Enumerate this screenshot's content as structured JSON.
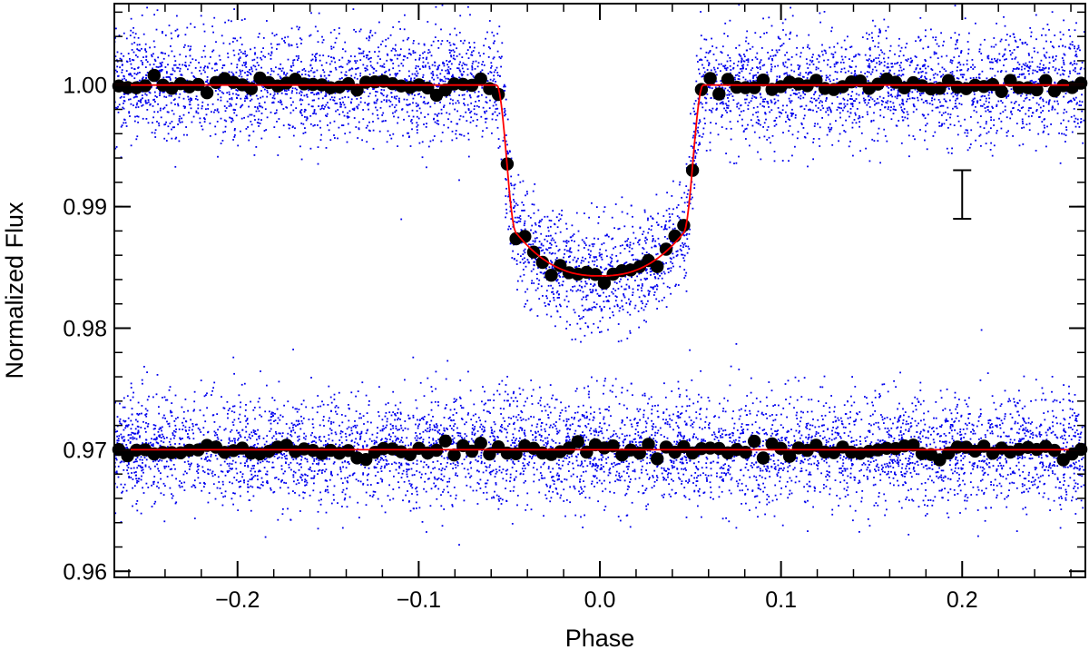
{
  "chart_data": {
    "type": "scatter",
    "title": "",
    "xlabel": "Phase",
    "ylabel": "Normalized Flux",
    "xlim": [
      -0.268,
      0.268
    ],
    "ylim": [
      0.9595,
      1.0067
    ],
    "x_ticks": [
      -0.2,
      -0.1,
      0.0,
      0.1,
      0.2
    ],
    "x_tick_labels": [
      "−0.2",
      "−0.1",
      "0.0",
      "0.1",
      "0.2"
    ],
    "y_ticks": [
      0.96,
      0.97,
      0.98,
      0.99,
      1.0
    ],
    "y_tick_labels": [
      "0.96",
      "0.97",
      "0.98",
      "0.99",
      "1.00"
    ],
    "grid": false,
    "legend": "none",
    "colors": {
      "raw_points": "#0000ee",
      "binned_points": "#000000",
      "model": "#ff0000",
      "axes": "#000000"
    },
    "model": {
      "out_of_transit_flux": 1.0,
      "transit_center_phase": 0.0,
      "first_contact_phase": -0.057,
      "second_contact_phase": -0.046,
      "third_contact_phase": 0.046,
      "fourth_contact_phase": 0.057,
      "depth_at_second_contact": 0.0122,
      "depth_at_center": 0.0157
    },
    "series": [
      {
        "name": "",
        "description_role": "transit light curve",
        "offset": 0.0,
        "raw_scatter_sigma": 0.0023
      },
      {
        "name": "",
        "description_role": "residuals (offset)",
        "offset": -0.03,
        "raw_scatter_sigma": 0.0023
      }
    ],
    "binned_points_per_series": 110,
    "raw_points_per_series": 5200,
    "binned_scatter_sigma": 0.0003,
    "error_bar": {
      "x": 0.2,
      "y_low": 0.989,
      "y_high": 0.993
    }
  }
}
